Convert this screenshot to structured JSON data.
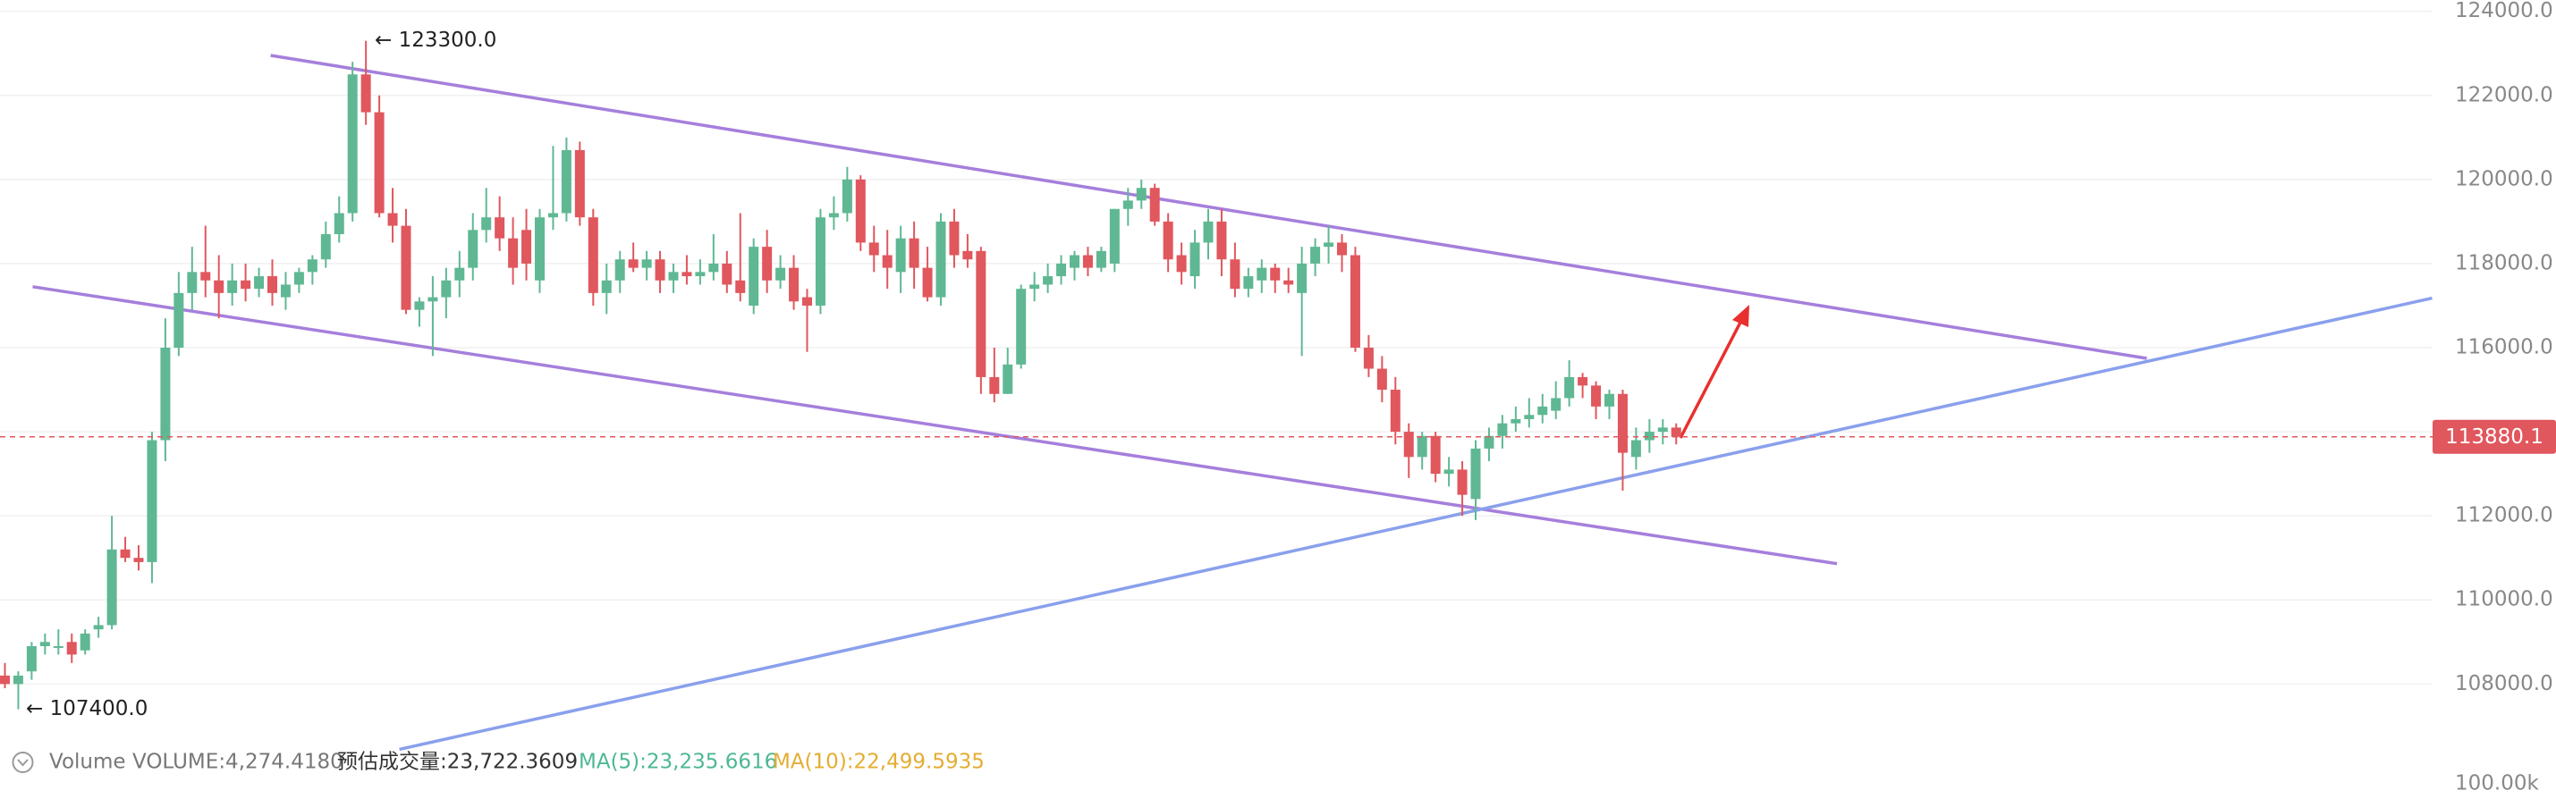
{
  "chart_data": {
    "type": "candlestick",
    "ylim": [
      106710,
      124270
    ],
    "yticks": [
      {
        "value": 108000,
        "label": "108000.0"
      },
      {
        "value": 110000,
        "label": "110000.0"
      },
      {
        "value": 112000,
        "label": "112000.0"
      },
      {
        "value": 114000,
        "label": "114000.0"
      },
      {
        "value": 116000,
        "label": "116000.0"
      },
      {
        "value": 118000,
        "label": "118000.0"
      },
      {
        "value": 120000,
        "label": "120000.0"
      },
      {
        "value": 122000,
        "label": "122000.0"
      },
      {
        "value": 124000,
        "label": "124000.0"
      }
    ],
    "grid": true,
    "up_color": "#5fb893",
    "down_color": "#e0575d",
    "current_price": 113880.1,
    "annotations": [
      {
        "value": 123300,
        "label": "← 123300.0"
      },
      {
        "value": 107400,
        "label": "← 107400.0"
      }
    ],
    "ohlc": [
      [
        108200,
        108500,
        107900,
        108000
      ],
      [
        108000,
        108300,
        107400,
        108200
      ],
      [
        108300,
        109000,
        108100,
        108900
      ],
      [
        108900,
        109200,
        108700,
        109000
      ],
      [
        108900,
        109300,
        108700,
        108900
      ],
      [
        109000,
        109200,
        108500,
        108700
      ],
      [
        108800,
        109300,
        108700,
        109200
      ],
      [
        109300,
        109600,
        109100,
        109400
      ],
      [
        109400,
        112000,
        109300,
        111200
      ],
      [
        111200,
        111500,
        110900,
        111000
      ],
      [
        111000,
        111300,
        110700,
        110900
      ],
      [
        110900,
        114000,
        110400,
        113800
      ],
      [
        113800,
        116700,
        113300,
        116000
      ],
      [
        116000,
        117800,
        115800,
        117300
      ],
      [
        117300,
        118400,
        116900,
        117800
      ],
      [
        117800,
        118900,
        117200,
        117600
      ],
      [
        117600,
        118200,
        116700,
        117300
      ],
      [
        117300,
        118000,
        117000,
        117600
      ],
      [
        117600,
        118000,
        117100,
        117400
      ],
      [
        117400,
        117900,
        117200,
        117700
      ],
      [
        117700,
        118100,
        117000,
        117300
      ],
      [
        117200,
        117800,
        116900,
        117500
      ],
      [
        117500,
        117900,
        117300,
        117800
      ],
      [
        117800,
        118200,
        117500,
        118100
      ],
      [
        118100,
        119000,
        117900,
        118700
      ],
      [
        118700,
        119600,
        118500,
        119200
      ],
      [
        119200,
        122800,
        119000,
        122500
      ],
      [
        122500,
        123300,
        121300,
        121600
      ],
      [
        121600,
        122000,
        119100,
        119200
      ],
      [
        119200,
        119800,
        118500,
        118900
      ],
      [
        118900,
        119300,
        116800,
        116900
      ],
      [
        116900,
        117200,
        116500,
        117100
      ],
      [
        117100,
        117700,
        115800,
        117200
      ],
      [
        117200,
        117900,
        116700,
        117600
      ],
      [
        117600,
        118300,
        117200,
        117900
      ],
      [
        117900,
        119200,
        117600,
        118800
      ],
      [
        118800,
        119800,
        118500,
        119100
      ],
      [
        119100,
        119600,
        118300,
        118600
      ],
      [
        118600,
        119100,
        117500,
        117900
      ],
      [
        118800,
        119300,
        117600,
        118000
      ],
      [
        117600,
        119300,
        117300,
        119100
      ],
      [
        119100,
        120800,
        118800,
        119200
      ],
      [
        119200,
        121000,
        119000,
        120700
      ],
      [
        120700,
        120900,
        118900,
        119100
      ],
      [
        119100,
        119300,
        117000,
        117300
      ],
      [
        117300,
        118000,
        116800,
        117600
      ],
      [
        117600,
        118300,
        117300,
        118100
      ],
      [
        118100,
        118500,
        117800,
        117900
      ],
      [
        117900,
        118300,
        117600,
        118100
      ],
      [
        118100,
        118300,
        117300,
        117600
      ],
      [
        117600,
        118000,
        117300,
        117800
      ],
      [
        117800,
        118200,
        117500,
        117700
      ],
      [
        117700,
        118100,
        117500,
        117800
      ],
      [
        117800,
        118700,
        117600,
        118000
      ],
      [
        118000,
        118300,
        117300,
        117500
      ],
      [
        117600,
        119200,
        117100,
        117300
      ],
      [
        117000,
        118600,
        116800,
        118400
      ],
      [
        118400,
        118800,
        117300,
        117600
      ],
      [
        117600,
        118200,
        117400,
        117900
      ],
      [
        117900,
        118200,
        116900,
        117100
      ],
      [
        117200,
        117400,
        115900,
        117000
      ],
      [
        117000,
        119300,
        116800,
        119100
      ],
      [
        119100,
        119600,
        118800,
        119200
      ],
      [
        119200,
        120300,
        119000,
        120000
      ],
      [
        120000,
        120100,
        118300,
        118500
      ],
      [
        118500,
        118900,
        117800,
        118200
      ],
      [
        118200,
        118800,
        117400,
        117900
      ],
      [
        117800,
        118900,
        117300,
        118600
      ],
      [
        118600,
        119000,
        117400,
        117900
      ],
      [
        117900,
        118400,
        117100,
        117200
      ],
      [
        117200,
        119200,
        117000,
        119000
      ],
      [
        119000,
        119300,
        117900,
        118200
      ],
      [
        118300,
        118700,
        117900,
        118100
      ],
      [
        118300,
        118400,
        114900,
        115300
      ],
      [
        115300,
        116000,
        114700,
        114900
      ],
      [
        114900,
        116000,
        114900,
        115600
      ],
      [
        115600,
        117500,
        115500,
        117400
      ],
      [
        117400,
        117800,
        117100,
        117500
      ],
      [
        117500,
        118000,
        117300,
        117700
      ],
      [
        117700,
        118200,
        117500,
        118000
      ],
      [
        117900,
        118300,
        117600,
        118200
      ],
      [
        118200,
        118400,
        117700,
        117900
      ],
      [
        117900,
        118400,
        117800,
        118300
      ],
      [
        118000,
        119300,
        117800,
        119300
      ],
      [
        119300,
        119800,
        118900,
        119500
      ],
      [
        119500,
        120000,
        119300,
        119800
      ],
      [
        119800,
        119900,
        118900,
        119000
      ],
      [
        119000,
        119200,
        117800,
        118100
      ],
      [
        118200,
        118500,
        117500,
        117800
      ],
      [
        117700,
        118800,
        117400,
        118500
      ],
      [
        118500,
        119300,
        118100,
        119000
      ],
      [
        119000,
        119300,
        117700,
        118100
      ],
      [
        118100,
        118500,
        117200,
        117400
      ],
      [
        117400,
        117900,
        117200,
        117700
      ],
      [
        117600,
        118100,
        117300,
        117900
      ],
      [
        117900,
        118000,
        117300,
        117600
      ],
      [
        117600,
        117900,
        117300,
        117500
      ],
      [
        117300,
        118400,
        115800,
        118000
      ],
      [
        118000,
        118600,
        117700,
        118400
      ],
      [
        118400,
        118900,
        118000,
        118500
      ],
      [
        118500,
        118700,
        117800,
        118200
      ],
      [
        118200,
        118400,
        115900,
        116000
      ],
      [
        116000,
        116300,
        115300,
        115500
      ],
      [
        115500,
        115800,
        114700,
        115000
      ],
      [
        115000,
        115300,
        113700,
        114000
      ],
      [
        114000,
        114200,
        112900,
        113400
      ],
      [
        113400,
        114000,
        113100,
        113900
      ],
      [
        113900,
        114000,
        112800,
        113000
      ],
      [
        113000,
        113400,
        112700,
        113100
      ],
      [
        113100,
        113300,
        112000,
        112500
      ],
      [
        112400,
        113800,
        111900,
        113600
      ],
      [
        113600,
        114100,
        113300,
        113900
      ],
      [
        113900,
        114400,
        113600,
        114200
      ],
      [
        114200,
        114600,
        114000,
        114300
      ],
      [
        114300,
        114800,
        114100,
        114400
      ],
      [
        114400,
        114900,
        114200,
        114600
      ],
      [
        114500,
        115200,
        114300,
        114800
      ],
      [
        114800,
        115700,
        114600,
        115300
      ],
      [
        115300,
        115400,
        114800,
        115100
      ],
      [
        115100,
        115200,
        114300,
        114600
      ],
      [
        114600,
        115000,
        114300,
        114900
      ],
      [
        114900,
        115000,
        112600,
        113500
      ],
      [
        113400,
        114100,
        113100,
        113800
      ],
      [
        113800,
        114300,
        113500,
        114000
      ],
      [
        114000,
        114300,
        113700,
        114100
      ],
      [
        114100,
        114200,
        113700,
        113880.1
      ]
    ],
    "volume_legend": {
      "name": "Volume",
      "volume": "VOLUME:4,274.4180",
      "estimate": "预估成交量:23,722.3609",
      "ma5": "MA(5):23,235.6616",
      "ma10": "MA(10):22,499.5935",
      "ma5_color": "#4db892",
      "ma10_color": "#e4ad32"
    },
    "volume_axis_label": "100.00k"
  }
}
